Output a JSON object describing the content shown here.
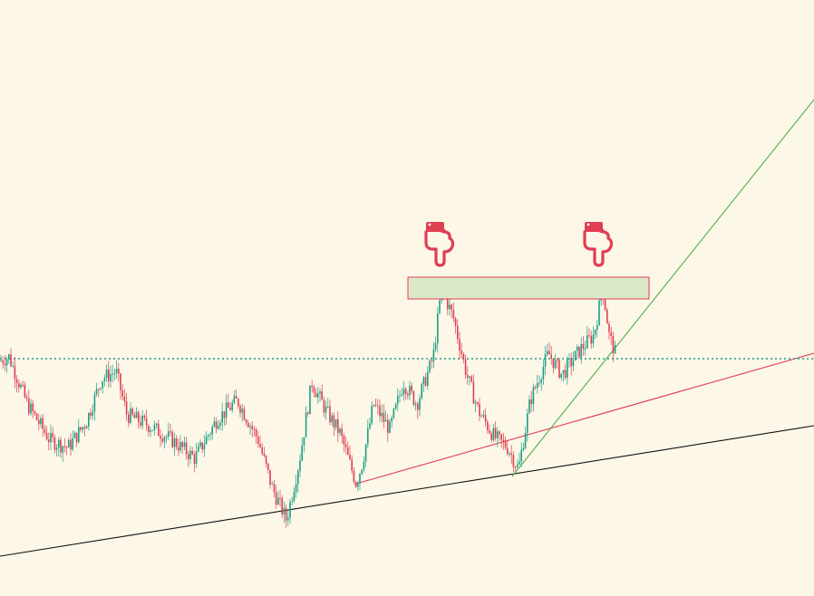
{
  "chart_data": {
    "type": "candlestick",
    "title": "",
    "xlabel": "",
    "ylabel": "",
    "grid": false,
    "legend": "none",
    "ylim": [
      0,
      100
    ],
    "colors": {
      "background": "#fdf7e7",
      "up": "#1a9e86",
      "down": "#e03e52",
      "resistance_zone_fill": "#dbe9c8",
      "resistance_zone_border": "#e03e52",
      "dotted_level": "#1a9e86",
      "support_trendline": "#111111",
      "red_trendline": "#e03e52",
      "green_trendline": "#4caf50",
      "pointer": "#e03e52"
    },
    "price_path": [
      [
        0,
        48
      ],
      [
        10,
        49
      ],
      [
        30,
        36
      ],
      [
        55,
        26
      ],
      [
        75,
        24
      ],
      [
        95,
        31
      ],
      [
        112,
        43
      ],
      [
        128,
        45
      ],
      [
        140,
        33
      ],
      [
        165,
        30
      ],
      [
        190,
        26
      ],
      [
        215,
        21
      ],
      [
        240,
        32
      ],
      [
        262,
        37
      ],
      [
        285,
        26
      ],
      [
        300,
        13
      ],
      [
        316,
        4
      ],
      [
        330,
        20
      ],
      [
        344,
        42
      ],
      [
        360,
        34
      ],
      [
        375,
        28
      ],
      [
        393,
        14
      ],
      [
        400,
        20
      ],
      [
        412,
        36
      ],
      [
        430,
        29
      ],
      [
        445,
        42
      ],
      [
        460,
        36
      ],
      [
        478,
        49
      ],
      [
        487,
        68
      ],
      [
        500,
        60
      ],
      [
        515,
        44
      ],
      [
        528,
        34
      ],
      [
        545,
        27
      ],
      [
        560,
        24
      ],
      [
        572,
        18
      ],
      [
        585,
        37
      ],
      [
        605,
        50
      ],
      [
        620,
        44
      ],
      [
        640,
        51
      ],
      [
        655,
        55
      ],
      [
        665,
        68
      ],
      [
        672,
        55
      ],
      [
        680,
        49
      ]
    ],
    "dotted_level": 48.5,
    "resistance_zone": {
      "x_start": 450,
      "x_end": 716,
      "y_low": 65,
      "y_high": 71
    },
    "trendlines": [
      {
        "name": "support_long",
        "color": "support_trendline",
        "points": [
          [
            0,
            -6
          ],
          [
            898,
            30
          ]
        ]
      },
      {
        "name": "support_mid",
        "color": "red_trendline",
        "points": [
          [
            393,
            14
          ],
          [
            898,
            50
          ]
        ]
      },
      {
        "name": "support_steep",
        "color": "green_trendline",
        "points": [
          [
            565,
            16
          ],
          [
            898,
            120
          ]
        ]
      }
    ],
    "markers": [
      {
        "icon": "pointing-down-hand-icon",
        "x": 487,
        "y": 81
      },
      {
        "icon": "pointing-down-hand-icon",
        "x": 662,
        "y": 81
      }
    ]
  }
}
